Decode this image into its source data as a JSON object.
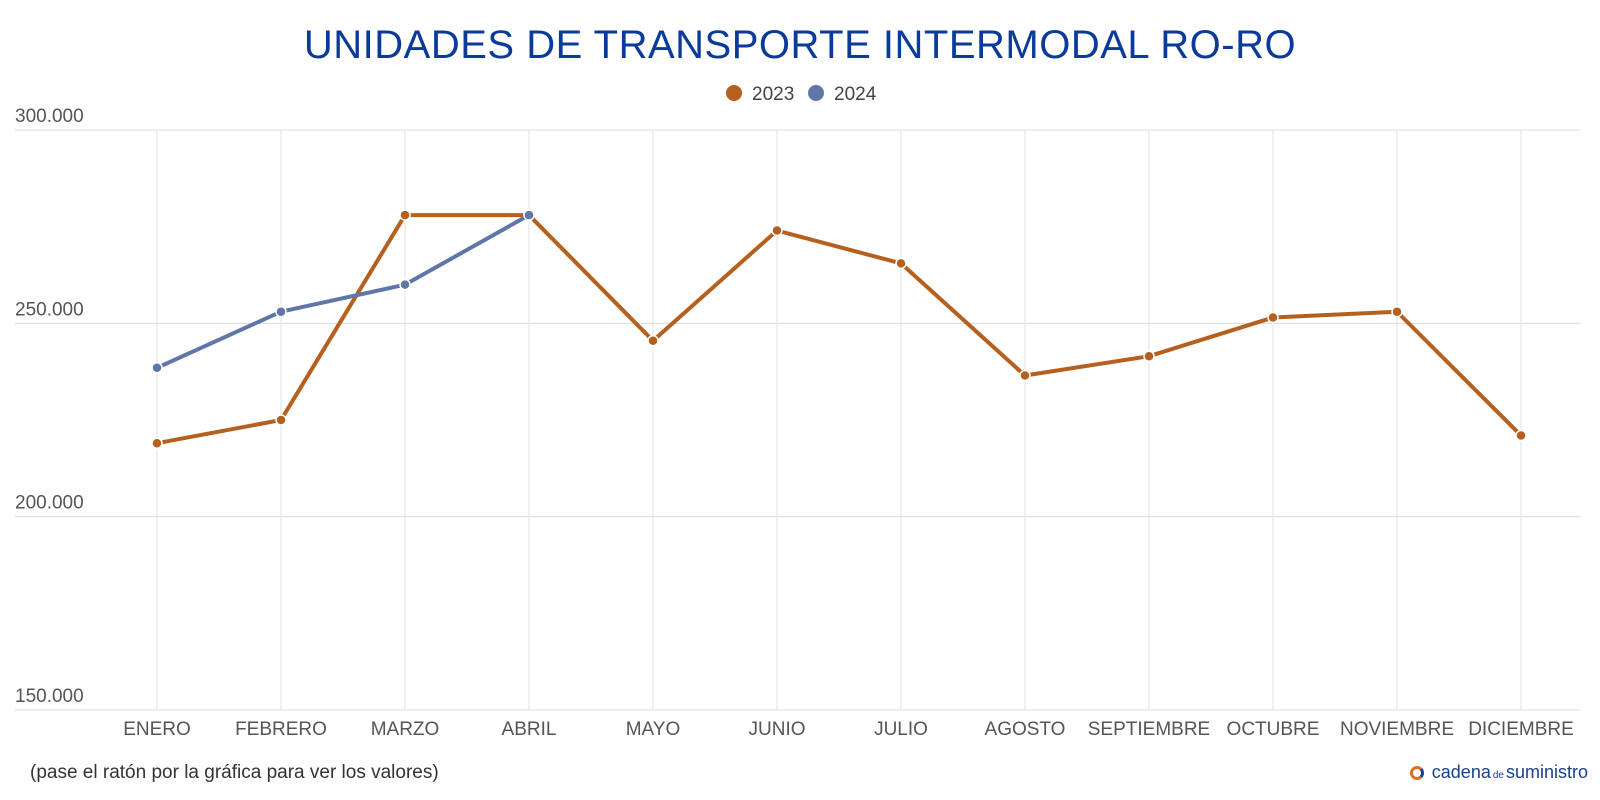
{
  "chart_data": {
    "type": "line",
    "title": "UNIDADES DE TRANSPORTE INTERMODAL RO-RO",
    "categories": [
      "ENERO",
      "FEBRERO",
      "MARZO",
      "ABRIL",
      "MAYO",
      "JUNIO",
      "JULIO",
      "AGOSTO",
      "SEPTIEMBRE",
      "OCTUBRE",
      "NOVIEMBRE",
      "DICIEMBRE"
    ],
    "series": [
      {
        "name": "2023",
        "color": "#b5601e",
        "values": [
          219000,
          225000,
          278000,
          278000,
          245500,
          274000,
          265500,
          236500,
          241500,
          251500,
          253000,
          221000
        ]
      },
      {
        "name": "2024",
        "color": "#5f76a8",
        "values": [
          238500,
          253000,
          260000,
          278000,
          null,
          null,
          null,
          null,
          null,
          null,
          null,
          null
        ]
      }
    ],
    "ylim": [
      150000,
      300000
    ],
    "yticks": [
      150000,
      200000,
      250000,
      300000
    ],
    "ytick_labels": [
      "150.000",
      "200.000",
      "250.000",
      "300.000"
    ],
    "xlabel": "",
    "ylabel": "",
    "legend_position": "top-center",
    "grid": true
  },
  "footer": {
    "note": "(pase el ratón por la gráfica para ver los valores)",
    "brand_cadena": "cadena",
    "brand_de": "de",
    "brand_suministro": "suministro"
  }
}
